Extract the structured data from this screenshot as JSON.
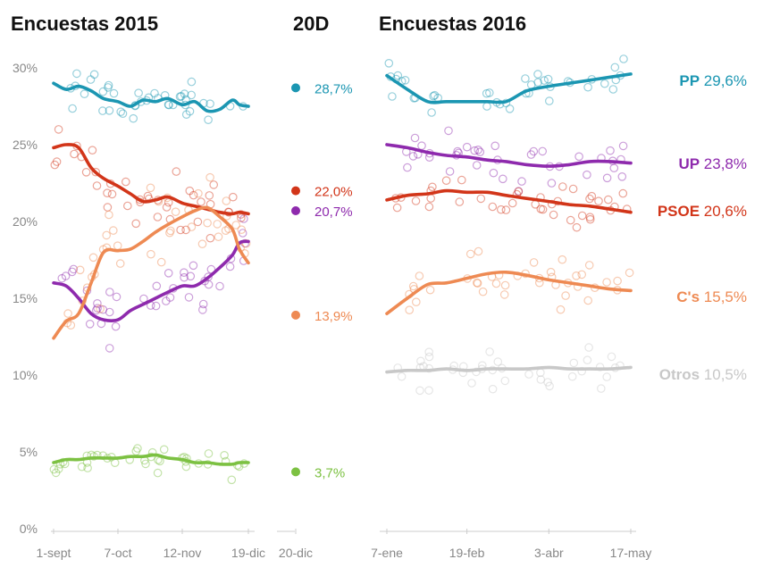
{
  "chart_data": [
    {
      "type": "line",
      "title": "Encuestas 2015",
      "x_ticks": [
        "1-sept",
        "7-oct",
        "12-nov",
        "19-dic"
      ],
      "ylim": [
        0,
        30
      ],
      "y_ticks": [
        "0%",
        "5%",
        "10%",
        "15%",
        "20%",
        "25%",
        "30%"
      ],
      "grid": false,
      "x": [
        "2015-09-01",
        "2015-09-08",
        "2015-09-15",
        "2015-09-22",
        "2015-09-29",
        "2015-10-07",
        "2015-10-14",
        "2015-10-21",
        "2015-10-28",
        "2015-11-04",
        "2015-11-12",
        "2015-11-19",
        "2015-11-26",
        "2015-12-03",
        "2015-12-10",
        "2015-12-14",
        "2015-12-19"
      ],
      "series": [
        {
          "name": "PP",
          "color": "#1b96b2",
          "values": [
            29.0,
            28.6,
            28.8,
            28.5,
            28.0,
            27.8,
            27.5,
            27.9,
            27.8,
            28.0,
            27.6,
            27.8,
            27.2,
            27.3,
            27.9,
            27.6,
            27.5
          ]
        },
        {
          "name": "UP",
          "color": "#8e2aad",
          "values": [
            16.0,
            15.8,
            15.0,
            14.0,
            13.6,
            13.6,
            14.2,
            14.6,
            15.0,
            15.4,
            15.8,
            15.8,
            16.3,
            17.0,
            17.8,
            18.6,
            18.7
          ]
        },
        {
          "name": "PSOE",
          "color": "#d23519",
          "values": [
            24.8,
            25.0,
            24.8,
            23.5,
            22.8,
            22.3,
            21.8,
            21.3,
            21.4,
            21.6,
            21.2,
            21.0,
            20.8,
            20.6,
            20.5,
            20.6,
            20.5
          ]
        },
        {
          "name": "C's",
          "color": "#ee8a53",
          "values": [
            12.4,
            13.5,
            14.0,
            16.0,
            18.0,
            18.1,
            18.2,
            18.7,
            19.3,
            19.8,
            20.3,
            20.7,
            20.9,
            20.3,
            19.5,
            18.2,
            17.3
          ]
        },
        {
          "name": "Otros",
          "color": "#7cc142",
          "values": [
            4.3,
            4.5,
            4.5,
            4.6,
            4.6,
            4.6,
            4.7,
            4.7,
            4.8,
            4.6,
            4.5,
            4.3,
            4.3,
            4.2,
            4.2,
            4.3,
            4.3
          ]
        }
      ]
    },
    {
      "type": "scatter",
      "title": "20D",
      "x_ticks": [
        "20-dic"
      ],
      "ylim": [
        0,
        30
      ],
      "points": [
        {
          "party": "PP",
          "value": 28.7,
          "label": "28,7%",
          "color": "#1b96b2"
        },
        {
          "party": "PSOE",
          "value": 22.0,
          "label": "22,0%",
          "color": "#d23519"
        },
        {
          "party": "UP",
          "value": 20.7,
          "label": "20,7%",
          "color": "#8e2aad"
        },
        {
          "party": "C's",
          "value": 13.9,
          "label": "13,9%",
          "color": "#ee8a53"
        },
        {
          "party": "Otros",
          "value": 3.7,
          "label": "3,7%",
          "color": "#7cc142"
        }
      ]
    },
    {
      "type": "line",
      "title": "Encuestas 2016",
      "x_ticks": [
        "7-ene",
        "19-feb",
        "3-abr",
        "17-may"
      ],
      "ylim": [
        0,
        30
      ],
      "x": [
        "2016-01-07",
        "2016-01-18",
        "2016-01-29",
        "2016-02-08",
        "2016-02-19",
        "2016-03-01",
        "2016-03-11",
        "2016-03-22",
        "2016-04-03",
        "2016-04-14",
        "2016-04-25",
        "2016-05-06",
        "2016-05-17"
      ],
      "series": [
        {
          "name": "PP",
          "label": "PP",
          "value_label": "29,6%",
          "color": "#1b96b2",
          "values": [
            29.5,
            28.6,
            27.8,
            27.8,
            27.8,
            27.8,
            27.8,
            28.5,
            28.8,
            29.0,
            29.2,
            29.4,
            29.6
          ]
        },
        {
          "name": "UP",
          "label": "UP",
          "value_label": "23,8%",
          "color": "#8e2aad",
          "values": [
            25.0,
            24.8,
            24.5,
            24.3,
            24.2,
            24.0,
            23.9,
            23.7,
            23.6,
            23.7,
            23.9,
            23.9,
            23.8
          ]
        },
        {
          "name": "PSOE",
          "label": "PSOE",
          "value_label": "20,6%",
          "color": "#d23519",
          "values": [
            21.4,
            21.7,
            21.8,
            22.0,
            21.9,
            21.9,
            21.7,
            21.5,
            21.3,
            21.1,
            21.0,
            20.8,
            20.6
          ]
        },
        {
          "name": "C's",
          "label": "C's",
          "value_label": "15,5%",
          "color": "#ee8a53",
          "values": [
            14.0,
            15.0,
            15.9,
            16.0,
            16.3,
            16.6,
            16.7,
            16.5,
            16.2,
            16.0,
            15.8,
            15.6,
            15.5
          ]
        },
        {
          "name": "Otros",
          "label": "Otros",
          "value_label": "10,5%",
          "color": "#c8c8c8",
          "values": [
            10.2,
            10.3,
            10.3,
            10.4,
            10.3,
            10.4,
            10.4,
            10.4,
            10.5,
            10.4,
            10.4,
            10.4,
            10.5
          ]
        }
      ]
    }
  ]
}
